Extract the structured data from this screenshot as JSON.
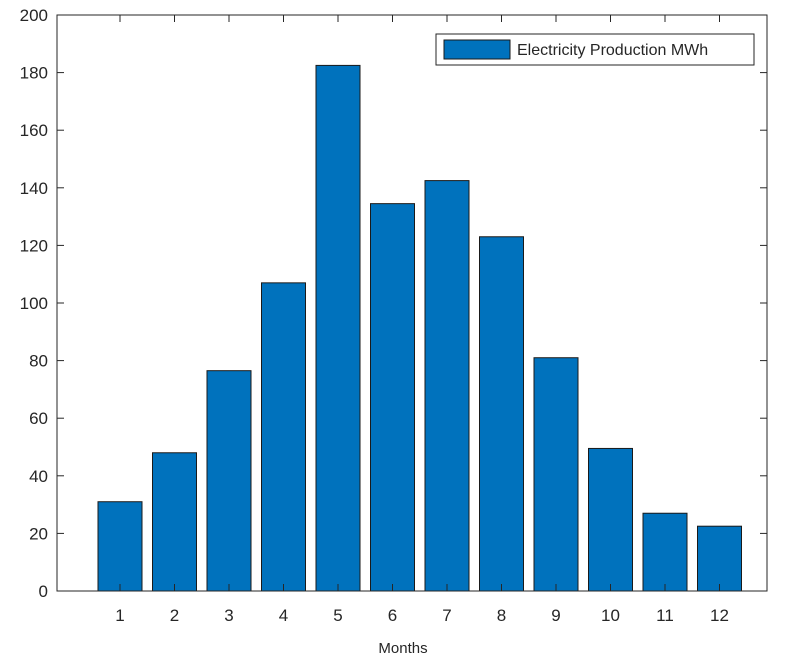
{
  "chart_data": {
    "type": "bar",
    "categories": [
      "1",
      "2",
      "3",
      "4",
      "5",
      "6",
      "7",
      "8",
      "9",
      "10",
      "11",
      "12"
    ],
    "series": [
      {
        "name": "Electricity Production MWh",
        "values": [
          31,
          48,
          76.5,
          107,
          182.5,
          134.5,
          142.5,
          123,
          81,
          49.5,
          27,
          22.5
        ]
      }
    ],
    "xlabel": "Months",
    "ylabel": "",
    "title": "",
    "ylim": [
      0,
      200
    ],
    "yticks": [
      "0",
      "20",
      "40",
      "60",
      "80",
      "100",
      "120",
      "140",
      "160",
      "180",
      "200"
    ],
    "grid": false,
    "legend_position": "top-right",
    "colors": {
      "bar": "#0072BD",
      "bar_edge": "#1a1a1a",
      "axis": "#262626"
    }
  }
}
